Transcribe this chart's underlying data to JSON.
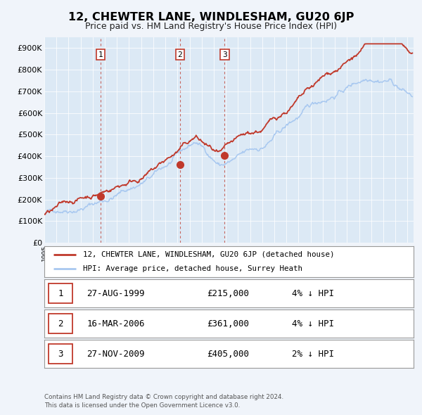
{
  "title": "12, CHEWTER LANE, WINDLESHAM, GU20 6JP",
  "subtitle": "Price paid vs. HM Land Registry's House Price Index (HPI)",
  "background_color": "#f0f4fa",
  "plot_bg_color": "#dce9f5",
  "hpi_color": "#a8c8f0",
  "price_color": "#c0392b",
  "marker_color": "#c0392b",
  "sale_dates": [
    1999.65,
    2006.2,
    2009.9
  ],
  "sale_prices": [
    215000,
    361000,
    405000
  ],
  "sale_labels": [
    "1",
    "2",
    "3"
  ],
  "legend_price_label": "12, CHEWTER LANE, WINDLESHAM, GU20 6JP (detached house)",
  "legend_hpi_label": "HPI: Average price, detached house, Surrey Heath",
  "table_rows": [
    [
      "1",
      "27-AUG-1999",
      "£215,000",
      "4% ↓ HPI"
    ],
    [
      "2",
      "16-MAR-2006",
      "£361,000",
      "4% ↓ HPI"
    ],
    [
      "3",
      "27-NOV-2009",
      "£405,000",
      "2% ↓ HPI"
    ]
  ],
  "footer_text": "Contains HM Land Registry data © Crown copyright and database right 2024.\nThis data is licensed under the Open Government Licence v3.0.",
  "xmin": 1995.0,
  "xmax": 2025.5,
  "ylim": [
    0,
    950000
  ],
  "yticks": [
    0,
    100000,
    200000,
    300000,
    400000,
    500000,
    600000,
    700000,
    800000,
    900000
  ],
  "ytick_labels": [
    "£0",
    "£100K",
    "£200K",
    "£300K",
    "£400K",
    "£500K",
    "£600K",
    "£700K",
    "£800K",
    "£900K"
  ]
}
